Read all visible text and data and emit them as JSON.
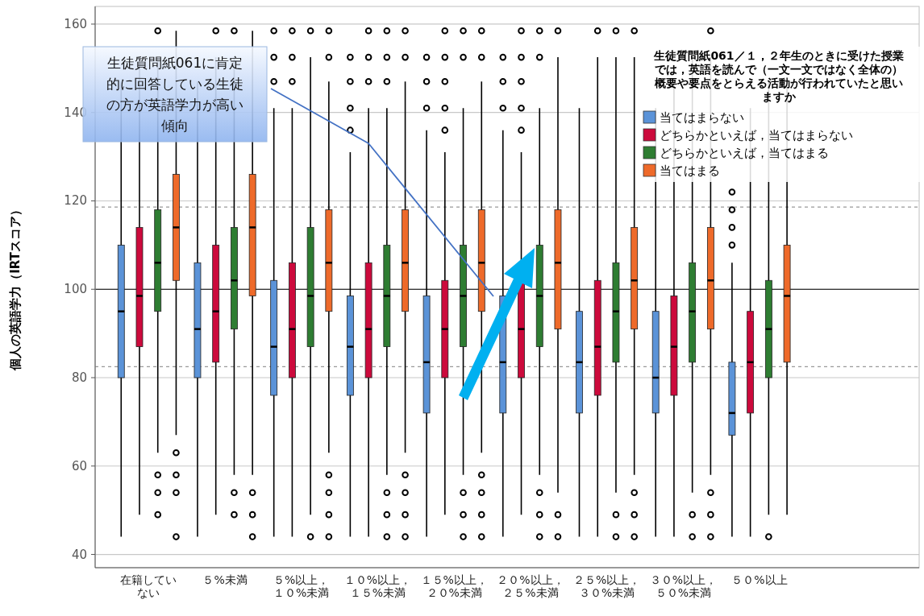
{
  "chart_data": {
    "type": "box",
    "ylabel": "個人の英語学力（IRTスコア）",
    "legend_title": "生徒質問紙061／１，２年生のときに受けた授業では，英語を読んで（一文一文ではなく全体の）概要や要点をとらえる活動が行われていたと思いますか",
    "legend": "top right",
    "grid": "y",
    "ylim": [
      37,
      164
    ],
    "yticks": [
      40,
      60,
      80,
      100,
      120,
      140,
      160
    ],
    "categories": [
      "在籍していない",
      "５%未満",
      "５%以上，１０%未満",
      "１０%以上，１５%未満",
      "１５%以上，２０%未満",
      "２０%以上，２５%未満",
      "２５%以上，３０%未満",
      "３０%以上，５０%未満",
      "５０%以上"
    ],
    "series": [
      {
        "name": "当てはまらない",
        "color": "#5b93d8",
        "boxes": [
          {
            "low": 44,
            "q1": 80,
            "median": 95,
            "q3": 110,
            "high": 147
          },
          {
            "low": 44,
            "q1": 80,
            "median": 91,
            "q3": 106,
            "high": 147
          },
          {
            "low": 44,
            "q1": 76,
            "median": 87,
            "q3": 102,
            "high": 141,
            "outliers": [
              147,
              152.5,
              158.5
            ]
          },
          {
            "low": 44,
            "q1": 76,
            "median": 87,
            "q3": 98.5,
            "high": 131,
            "outliers": [
              136,
              141,
              147,
              152.5
            ]
          },
          {
            "low": 44,
            "q1": 72,
            "median": 83.5,
            "q3": 98.5,
            "high": 136,
            "outliers": [
              141,
              147,
              152.5
            ]
          },
          {
            "low": 44,
            "q1": 72,
            "median": 83.5,
            "q3": 98.5,
            "high": 136,
            "outliers": [
              141,
              147,
              152.5
            ]
          },
          {
            "low": 44,
            "q1": 72,
            "median": 83.5,
            "q3": 95,
            "high": 141
          },
          {
            "low": 44,
            "q1": 72,
            "median": 80,
            "q3": 95,
            "high": 141
          },
          {
            "low": 44,
            "q1": 67,
            "median": 72,
            "q3": 83.5,
            "high": 106,
            "outliers": [
              110,
              114,
              118,
              122
            ]
          }
        ]
      },
      {
        "name": "どちらかといえば，当てはまらない",
        "color": "#cc0a3c",
        "boxes": [
          {
            "low": 49,
            "q1": 87,
            "median": 98.5,
            "q3": 114,
            "high": 152.5
          },
          {
            "low": 49,
            "q1": 83.5,
            "median": 95,
            "q3": 110,
            "high": 152.5,
            "outliers": [
              158.5
            ]
          },
          {
            "low": 44,
            "q1": 80,
            "median": 91,
            "q3": 106,
            "high": 141,
            "outliers": [
              147,
              152.5,
              158.5
            ]
          },
          {
            "low": 44,
            "q1": 80,
            "median": 91,
            "q3": 106,
            "high": 141,
            "outliers": [
              147,
              152.5,
              158.5
            ]
          },
          {
            "low": 49,
            "q1": 80,
            "median": 91,
            "q3": 102,
            "high": 131,
            "outliers": [
              136,
              141,
              147,
              152.5,
              158.5
            ]
          },
          {
            "low": 49,
            "q1": 80,
            "median": 91,
            "q3": 102,
            "high": 131,
            "outliers": [
              136,
              141,
              147,
              152.5,
              158.5
            ]
          },
          {
            "low": 44,
            "q1": 76,
            "median": 87,
            "q3": 102,
            "high": 152.5,
            "outliers": [
              158.5
            ]
          },
          {
            "low": 44,
            "q1": 76,
            "median": 87,
            "q3": 98.5,
            "high": 147
          },
          {
            "low": 44,
            "q1": 72,
            "median": 83.5,
            "q3": 95,
            "high": 141
          }
        ]
      },
      {
        "name": "どちらかといえば，当てはまる",
        "color": "#2e7d32",
        "boxes": [
          {
            "low": 63,
            "q1": 95,
            "median": 106,
            "q3": 118,
            "high": 152.5,
            "outliers": [
              58,
              54,
              49,
              158.5
            ]
          },
          {
            "low": 58,
            "q1": 91,
            "median": 102,
            "q3": 114,
            "high": 152.5,
            "outliers": [
              54,
              49,
              158.5
            ]
          },
          {
            "low": 49,
            "q1": 87,
            "median": 98.5,
            "q3": 114,
            "high": 152.5,
            "outliers": [
              44,
              158.5
            ]
          },
          {
            "low": 58,
            "q1": 87,
            "median": 98.5,
            "q3": 110,
            "high": 141,
            "outliers": [
              54,
              49,
              44,
              147,
              152.5,
              158.5
            ]
          },
          {
            "low": 58,
            "q1": 87,
            "median": 98.5,
            "q3": 110,
            "high": 141,
            "outliers": [
              54,
              49,
              44,
              152.5,
              158.5
            ]
          },
          {
            "low": 58,
            "q1": 87,
            "median": 98.5,
            "q3": 110,
            "high": 141,
            "outliers": [
              54,
              49,
              44,
              152.5,
              158.5
            ]
          },
          {
            "low": 54,
            "q1": 83.5,
            "median": 95,
            "q3": 106,
            "high": 152.5,
            "outliers": [
              49,
              44,
              158.5
            ]
          },
          {
            "low": 54,
            "q1": 83.5,
            "median": 95,
            "q3": 106,
            "high": 152.5,
            "outliers": [
              49,
              44
            ]
          },
          {
            "low": 49,
            "q1": 80,
            "median": 91,
            "q3": 102,
            "high": 147,
            "outliers": [
              44
            ]
          }
        ]
      },
      {
        "name": "当てはまる",
        "color": "#ee6a2a",
        "boxes": [
          {
            "low": 67,
            "q1": 102,
            "median": 114,
            "q3": 126,
            "high": 158.5,
            "outliers": [
              63,
              58,
              54,
              44
            ]
          },
          {
            "low": 58,
            "q1": 98.5,
            "median": 114,
            "q3": 126,
            "high": 158.5,
            "outliers": [
              54,
              49,
              44
            ]
          },
          {
            "low": 63,
            "q1": 95,
            "median": 106,
            "q3": 118,
            "high": 147,
            "outliers": [
              58,
              54,
              49,
              44,
              152.5,
              158.5
            ]
          },
          {
            "low": 63,
            "q1": 95,
            "median": 106,
            "q3": 118,
            "high": 147,
            "outliers": [
              58,
              54,
              49,
              44,
              152.5,
              158.5
            ]
          },
          {
            "low": 63,
            "q1": 95,
            "median": 106,
            "q3": 118,
            "high": 147,
            "outliers": [
              58,
              54,
              49,
              44,
              152.5,
              158.5
            ]
          },
          {
            "low": 54,
            "q1": 91,
            "median": 106,
            "q3": 118,
            "high": 152.5,
            "outliers": [
              49,
              44,
              158.5
            ]
          },
          {
            "low": 58,
            "q1": 91,
            "median": 102,
            "q3": 114,
            "high": 152.5,
            "outliers": [
              54,
              49,
              44,
              158.5
            ]
          },
          {
            "low": 58,
            "q1": 91,
            "median": 102,
            "q3": 114,
            "high": 152.5,
            "outliers": [
              54,
              49,
              44,
              158.5
            ]
          },
          {
            "low": 49,
            "q1": 83.5,
            "median": 98.5,
            "q3": 110,
            "high": 147
          }
        ]
      }
    ],
    "ref_lines": [
      {
        "axis": "y",
        "value": 100,
        "color": "#000000",
        "line_style": "solid"
      },
      {
        "axis": "y",
        "value": 118.6,
        "color": "#999999",
        "line_style": "dashed"
      },
      {
        "axis": "y",
        "value": 82.5,
        "color": "#999999",
        "line_style": "dashed"
      }
    ],
    "annotations": [
      "生徒質問紙061に肯定的に回答している生徒の方が英語学力が高い傾向"
    ]
  }
}
